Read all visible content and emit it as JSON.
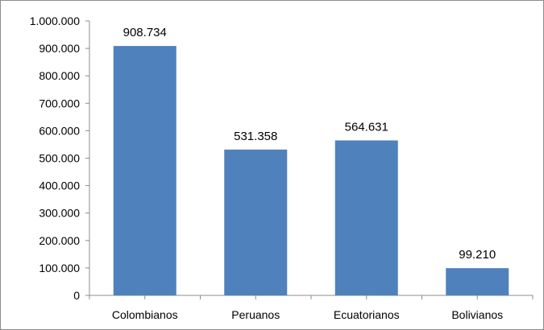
{
  "chart_data": {
    "type": "bar",
    "categories": [
      "Colombianos",
      "Peruanos",
      "Ecuatorianos",
      "Bolivianos"
    ],
    "values": [
      908734,
      531358,
      564631,
      99210
    ],
    "value_labels": [
      "908.734",
      "531.358",
      "564.631",
      "99.210"
    ],
    "ylim": [
      0,
      1000000
    ],
    "y_ticks": [
      0,
      100000,
      200000,
      300000,
      400000,
      500000,
      600000,
      700000,
      800000,
      900000,
      1000000
    ],
    "y_tick_labels": [
      "0",
      "100.000",
      "200.000",
      "300.000",
      "400.000",
      "500.000",
      "600.000",
      "700.000",
      "800.000",
      "900.000",
      "1.000.000"
    ],
    "grid": false,
    "legend": "none",
    "bar_color": "#4f81bd"
  }
}
